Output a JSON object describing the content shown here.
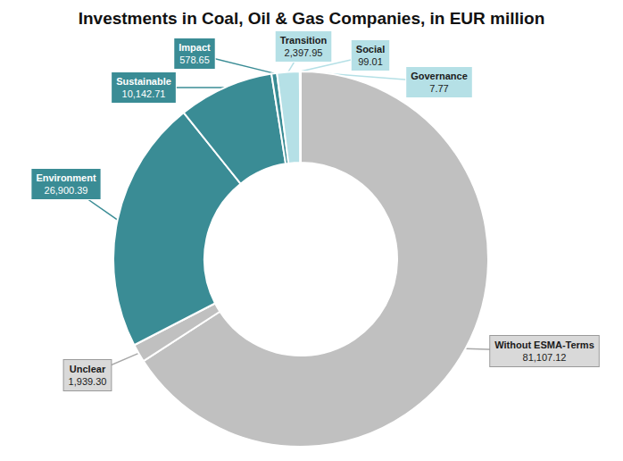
{
  "chart_data": {
    "type": "donut",
    "title": "Investments in Coal, Oil & Gas Companies, in EUR million",
    "categories": [
      "Without ESMA-Terms",
      "Unclear",
      "Environment",
      "Sustainable",
      "Impact",
      "Transition",
      "Social",
      "Governance"
    ],
    "values": [
      81107.12,
      1939.3,
      26900.39,
      10142.71,
      578.65,
      2397.95,
      99.01,
      7.77
    ],
    "value_labels": [
      "81,107.12",
      "1,939.30",
      "26,900.39",
      "10,142.71",
      "578.65",
      "2,397.95",
      "99.01",
      "7.77"
    ],
    "colors": [
      "#c0c0c0",
      "#c0c0c0",
      "#3a8c95",
      "#3a8c95",
      "#3a8c95",
      "#b5e0e6",
      "#b5e0e6",
      "#b5e0e6"
    ],
    "data_labels": true
  }
}
